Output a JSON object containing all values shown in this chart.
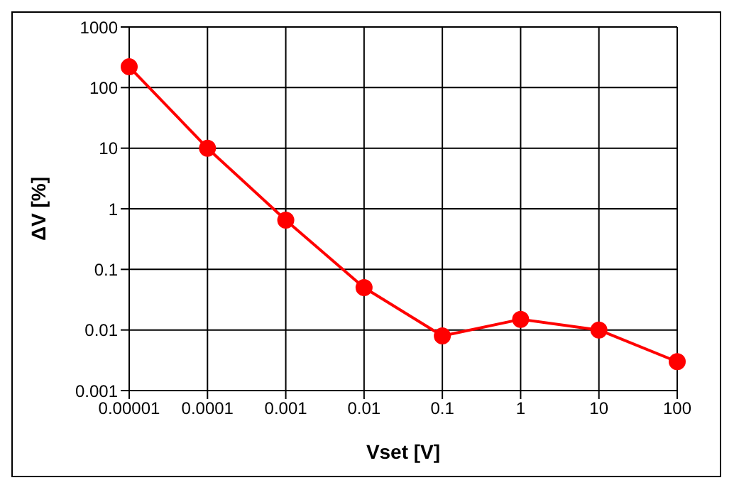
{
  "chart_data": {
    "type": "line",
    "xlabel": "Vset [V]",
    "ylabel": "ΔV [%]",
    "log": "xy",
    "grid": true,
    "marker": "circle",
    "line_style": "solid",
    "x": [
      1e-05,
      0.0001,
      0.001,
      0.01,
      0.1,
      1,
      10,
      100
    ],
    "series": [
      {
        "color": "#ff0000",
        "values": [
          220,
          10,
          0.65,
          0.05,
          0.008,
          0.015,
          0.01,
          0.003
        ]
      }
    ],
    "xlim": [
      1e-05,
      100
    ],
    "xticks": [
      {
        "value": 1e-05,
        "label": "0.00001"
      },
      0.0001,
      0.001,
      0.01,
      0.1,
      1,
      10,
      100
    ],
    "ylim": [
      0.001,
      1000
    ],
    "yticks": [
      0.001,
      0.01,
      0.1,
      1,
      10,
      100,
      1000
    ]
  }
}
